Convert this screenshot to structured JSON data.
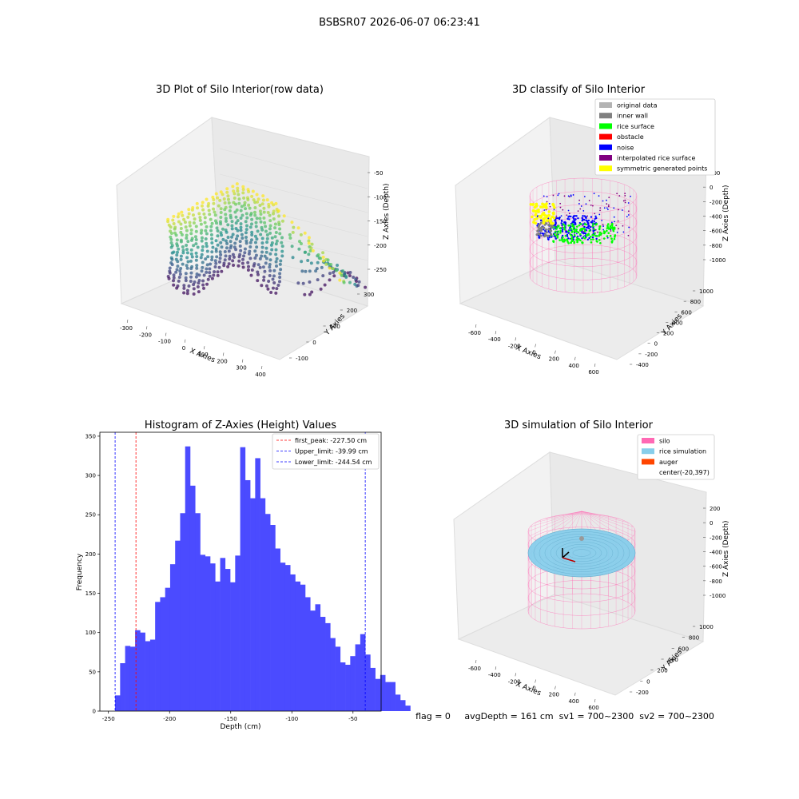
{
  "suptitle": "BSBSR07 2026-06-07 06:23:41",
  "status_text": "flag = 0     avgDepth = 161 cm  sv1 = 700~2300  sv2 = 700~2300",
  "colors": {
    "hist_bar": "#4b4bff",
    "peak_line": "#ff0000",
    "limit_line": "#0000ff",
    "pane": "#f2f2f2",
    "silo": "#ff69b4",
    "rice_sim": "#87ceeb",
    "auger": "#ff4500",
    "original": "#b3b3b3",
    "inner_wall": "#808080",
    "rice_surface": "#00ff00",
    "obstacle": "#ff0000",
    "noise": "#0000ff",
    "interp": "#800080",
    "symmetric": "#ffff00"
  },
  "chart_data": [
    {
      "type": "scatter",
      "title": "3D Plot of Silo Interior(row data)",
      "xlabel": "X Axies",
      "ylabel": "Y Axies",
      "zlabel": "Z Axies (Depth)",
      "xticks": [
        "-300",
        "-200",
        "-100",
        "0",
        "100",
        "200",
        "300",
        "400"
      ],
      "yticks": [
        "-100",
        "0",
        "100",
        "200",
        "300"
      ],
      "zticks": [
        "-250",
        "-200",
        "-150",
        "-100",
        "-50"
      ],
      "colormap": "viridis"
    },
    {
      "type": "scatter",
      "title": "3D classify of Silo Interior",
      "xlabel": "X Axies",
      "ylabel": "Y Axies",
      "zlabel": "Z Axies (Depth)",
      "xticks": [
        "-600",
        "-400",
        "-200",
        "0",
        "200",
        "400",
        "600"
      ],
      "yticks": [
        "-400",
        "-200",
        "0",
        "200",
        "400",
        "600",
        "800",
        "1000"
      ],
      "zticks": [
        "-1000",
        "-800",
        "-600",
        "-400",
        "-200",
        "0",
        "200"
      ],
      "legend": {
        "placement": "top-right",
        "items": [
          {
            "label": "original data",
            "color": "#b3b3b3"
          },
          {
            "label": "inner wall",
            "color": "#808080"
          },
          {
            "label": "rice surface",
            "color": "#00ff00"
          },
          {
            "label": "obstacle",
            "color": "#ff0000"
          },
          {
            "label": "noise",
            "color": "#0000ff"
          },
          {
            "label": "interpolated rice surface",
            "color": "#800080"
          },
          {
            "label": "symmetric generated points",
            "color": "#ffff00"
          }
        ]
      }
    },
    {
      "type": "bar",
      "title": "Histogram of Z-Axies (Height) Values",
      "xlabel": "Depth (cm)",
      "ylabel": "Frequency",
      "xlim": [
        -257,
        -27
      ],
      "ylim": [
        0,
        355
      ],
      "xticks": [
        -250,
        -200,
        -150,
        -100,
        -50
      ],
      "yticks": [
        0,
        50,
        100,
        150,
        200,
        250,
        300,
        350
      ],
      "bin_start": -244.54,
      "bin_width": 4.091,
      "values": [
        20,
        61,
        83,
        82,
        103,
        100,
        89,
        91,
        139,
        145,
        157,
        187,
        217,
        252,
        337,
        287,
        252,
        199,
        197,
        188,
        165,
        195,
        181,
        164,
        198,
        336,
        294,
        271,
        322,
        271,
        251,
        237,
        207,
        189,
        186,
        174,
        165,
        161,
        145,
        128,
        136,
        120,
        112,
        93,
        82,
        62,
        59,
        70,
        85,
        98,
        72,
        55,
        41,
        46,
        37,
        37,
        21,
        14,
        7
      ],
      "vlines": [
        {
          "label": "first_peak: -227.50 cm",
          "x": -227.5,
          "color": "#ff0000"
        },
        {
          "label": "Upper_limit: -39.99 cm",
          "x": -39.99,
          "color": "#0000ff"
        },
        {
          "label": "Lower_limit: -244.54 cm",
          "x": -244.54,
          "color": "#0000ff"
        }
      ],
      "legend_placement": "top-right"
    },
    {
      "type": "scatter",
      "title": "3D simulation of Silo Interior",
      "xlabel": "X Axies",
      "ylabel": "Y Axies",
      "zlabel": "Z Axies (Depth)",
      "xticks": [
        "-600",
        "-400",
        "-200",
        "0",
        "200",
        "400",
        "600"
      ],
      "yticks": [
        "-200",
        "0",
        "200",
        "400",
        "600",
        "800",
        "1000"
      ],
      "zticks": [
        "-1000",
        "-800",
        "-600",
        "-400",
        "-200",
        "0",
        "200"
      ],
      "legend": {
        "placement": "top-right",
        "items": [
          {
            "label": "silo",
            "color": "#ff69b4"
          },
          {
            "label": "rice simulation",
            "color": "#87ceeb"
          },
          {
            "label": "auger",
            "color": "#ff4500"
          },
          {
            "label": "center(-20,397)",
            "color": ""
          }
        ]
      }
    }
  ]
}
